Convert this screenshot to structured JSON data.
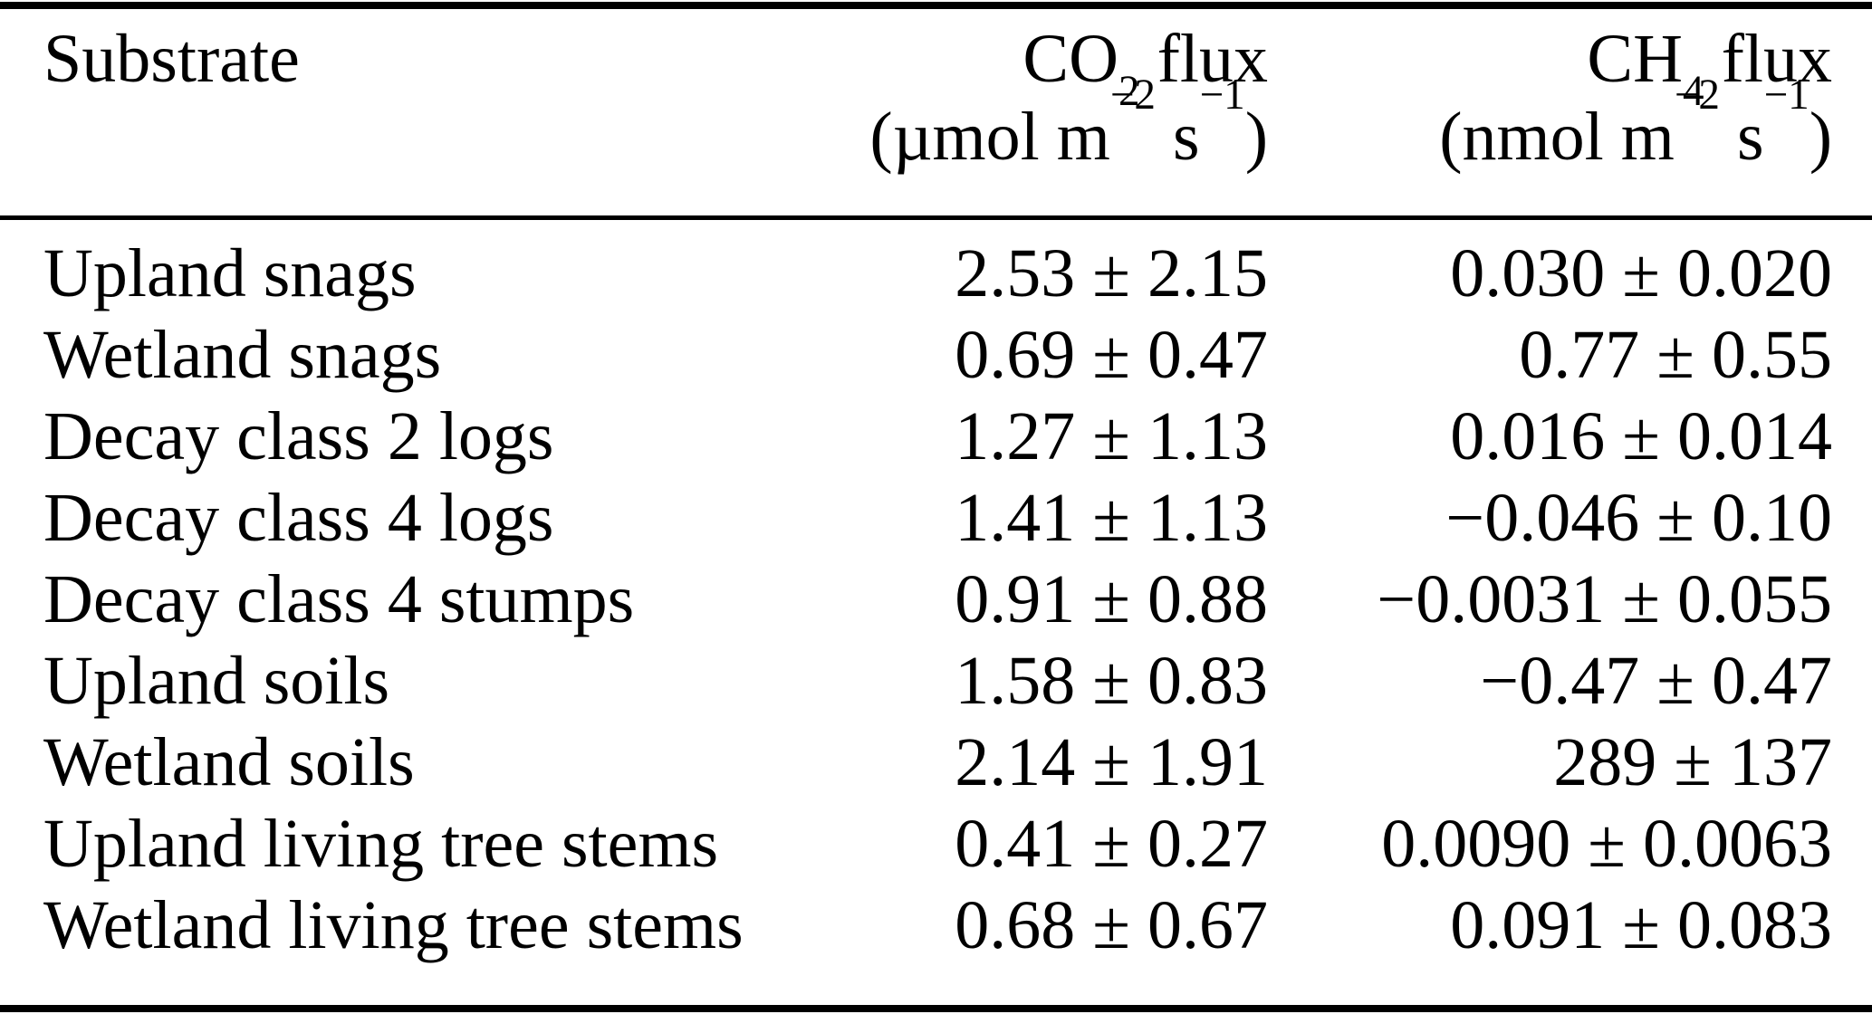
{
  "colors": {
    "text": "#000000",
    "background": "#ffffff",
    "rule": "#000000"
  },
  "table": {
    "columns": {
      "substrate_label": "Substrate",
      "co2": {
        "gas_pre": "CO",
        "gas_sub": "2",
        "flux_label": " flux",
        "unit_pre": "(µmol m",
        "unit_sup1": "−2",
        "unit_mid": " s",
        "unit_sup2": "−1",
        "unit_post": ")"
      },
      "ch4": {
        "gas_pre": "CH",
        "gas_sub": "4",
        "flux_label": " flux",
        "unit_pre": "(nmol m",
        "unit_sup1": "−2",
        "unit_mid": " s",
        "unit_sup2": "−1",
        "unit_post": ")"
      }
    },
    "rows": [
      {
        "substrate": "Upland snags",
        "co2": "2.53 ± 2.15",
        "ch4": "0.030 ± 0.020"
      },
      {
        "substrate": "Wetland snags",
        "co2": "0.69 ± 0.47",
        "ch4": "0.77 ± 0.55"
      },
      {
        "substrate": "Decay class 2 logs",
        "co2": "1.27 ± 1.13",
        "ch4": "0.016 ± 0.014"
      },
      {
        "substrate": "Decay class 4 logs",
        "co2": "1.41 ± 1.13",
        "ch4": "−0.046 ± 0.10"
      },
      {
        "substrate": "Decay class 4 stumps",
        "co2": "0.91 ± 0.88",
        "ch4": "−0.0031 ± 0.055"
      },
      {
        "substrate": "Upland soils",
        "co2": "1.58 ± 0.83",
        "ch4": "−0.47 ± 0.47"
      },
      {
        "substrate": "Wetland soils",
        "co2": "2.14 ± 1.91",
        "ch4": "289 ± 137"
      },
      {
        "substrate": "Upland living tree stems",
        "co2": "0.41 ± 0.27",
        "ch4": "0.0090 ± 0.0063"
      },
      {
        "substrate": "Wetland living tree stems",
        "co2": "0.68 ± 0.67",
        "ch4": "0.091 ± 0.083"
      }
    ]
  }
}
